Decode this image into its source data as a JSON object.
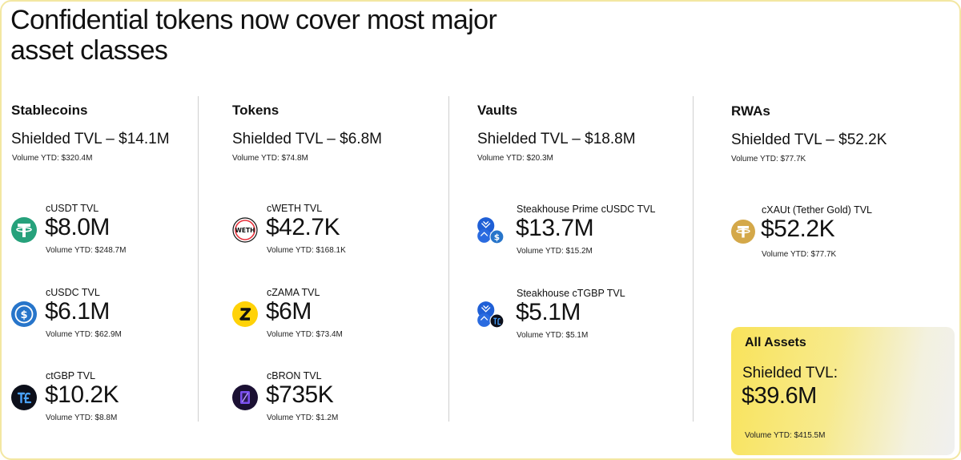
{
  "headline": "Confidential tokens now cover most major asset classes",
  "colors": {
    "border": "#f3e7a2",
    "card_accent": "#f9e35a"
  },
  "columns": [
    {
      "title": "Stablecoins",
      "shielded_tvl": "Shielded TVL – $14.1M",
      "volume_ytd": "Volume YTD: $320.4M",
      "assets": [
        {
          "icon": "tether-icon",
          "label": "cUSDT TVL",
          "value": "$8.0M",
          "volume": "Volume YTD: $248.7M"
        },
        {
          "icon": "usdc-icon",
          "label": "cUSDC TVL",
          "value": "$6.1M",
          "volume": "Volume YTD: $62.9M"
        },
        {
          "icon": "tgbp-icon",
          "label": "ctGBP TVL",
          "value": "$10.2K",
          "volume": "Volume YTD: $8.8M"
        }
      ]
    },
    {
      "title": "Tokens",
      "shielded_tvl": "Shielded TVL – $6.8M",
      "volume_ytd": "Volume YTD: $74.8M",
      "assets": [
        {
          "icon": "weth-icon",
          "icon_text": "WETH",
          "label": "cWETH TVL",
          "value": "$42.7K",
          "volume": "Volume YTD: $168.1K"
        },
        {
          "icon": "zama-icon",
          "label": "cZAMA TVL",
          "value": "$6M",
          "volume": "Volume YTD: $73.4M"
        },
        {
          "icon": "bron-icon",
          "label": "cBRON TVL",
          "value": "$735K",
          "volume": "Volume YTD: $1.2M"
        }
      ]
    },
    {
      "title": "Vaults",
      "shielded_tvl": "Shielded TVL – $18.8M",
      "volume_ytd": "Volume YTD: $20.3M",
      "assets": [
        {
          "icon": "steakhouse-usdc-icon",
          "label": "Steakhouse Prime cUSDC TVL",
          "value": "$13.7M",
          "volume": "Volume YTD: $15.2M"
        },
        {
          "icon": "steakhouse-tgbp-icon",
          "label": "Steakhouse cTGBP TVL",
          "value": "$5.1M",
          "volume": "Volume YTD: $5.1M"
        }
      ]
    },
    {
      "title": "RWAs",
      "shielded_tvl": "Shielded TVL – $52.2K",
      "volume_ytd": "Volume YTD: $77.7K",
      "assets": [
        {
          "icon": "tether-gold-icon",
          "label": "cXAUt (Tether Gold) TVL",
          "value": "$52.2K",
          "volume": "Volume YTD: $77.7K"
        }
      ]
    }
  ],
  "all_assets": {
    "title": "All Assets",
    "label": "Shielded TVL:",
    "value": "$39.6M",
    "volume": "Volume YTD: $415.5M"
  }
}
